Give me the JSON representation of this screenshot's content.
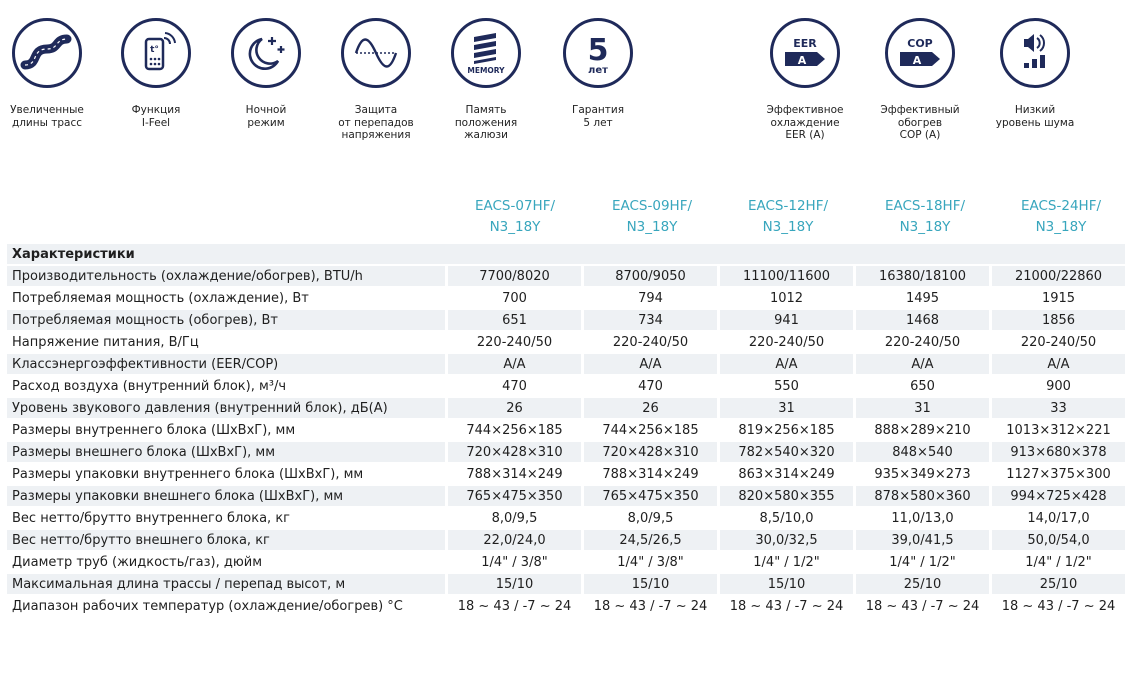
{
  "features": [
    {
      "icon": "road-icon",
      "caption": "Увеличенные\nдлины трасс"
    },
    {
      "icon": "remote-control-icon",
      "caption": "Функция\nI-Feel"
    },
    {
      "icon": "moon-icon",
      "caption": "Ночной\nрежим"
    },
    {
      "icon": "sine-wave-icon",
      "caption": "Защита\nот перепадов\nнапряжения"
    },
    {
      "icon": "memory-louver-icon",
      "caption": "Память\nположения\nжалюзи",
      "badge": "MEMORY"
    },
    {
      "icon": "warranty-icon",
      "caption": "Гарантия\n5 лет",
      "number": "5",
      "unit": "лет"
    },
    {
      "icon": "eer-badge-icon",
      "caption": "Эффективное\nохлаждение\nEER (A)",
      "label": "EER",
      "grade": "A"
    },
    {
      "icon": "cop-badge-icon",
      "caption": "Эффективный\nобогрев\nCOP (A)",
      "label": "COP",
      "grade": "A"
    },
    {
      "icon": "low-noise-icon",
      "caption": "Низкий\nуровень шума"
    }
  ],
  "models": [
    "EACS-07HF/\nN3_18Y",
    "EACS-09HF/\nN3_18Y",
    "EACS-12HF/\nN3_18Y",
    "EACS-18HF/\nN3_18Y",
    "EACS-24HF/\nN3_18Y"
  ],
  "section_title": "Характеристики",
  "rows": [
    {
      "param": "Производительность (охлаждение/обогрев), BTU/h",
      "values": [
        "7700/8020",
        "8700/9050",
        "11100/11600",
        "16380/18100",
        "21000/22860"
      ]
    },
    {
      "param": "Потребляемая мощность (охлаждение), Вт",
      "values": [
        "700",
        "794",
        "1012",
        "1495",
        "1915"
      ]
    },
    {
      "param": "Потребляемая мощность (обогрев), Вт",
      "values": [
        "651",
        "734",
        "941",
        "1468",
        "1856"
      ]
    },
    {
      "param": "Напряжение питания, В/Гц",
      "values": [
        "220-240/50",
        "220-240/50",
        "220-240/50",
        "220-240/50",
        "220-240/50"
      ]
    },
    {
      "param": "Классэнергоэффективности (EER/COP)",
      "values": [
        "A/A",
        "A/A",
        "A/A",
        "A/A",
        "A/A"
      ]
    },
    {
      "param": "Расход воздуха (внутренний блок), м³/ч",
      "values": [
        "470",
        "470",
        "550",
        "650",
        "900"
      ]
    },
    {
      "param": "Уровень звукового давления (внутренний блок), дБ(A)",
      "values": [
        "26",
        "26",
        "31",
        "31",
        "33"
      ]
    },
    {
      "param": "Размеры внутреннего блока (ШхВхГ), мм",
      "values": [
        "744×256×185",
        "744×256×185",
        "819×256×185",
        "888×289×210",
        "1013×312×221"
      ]
    },
    {
      "param": "Размеры внешнего блока (ШхВхГ), мм",
      "values": [
        "720×428×310",
        "720×428×310",
        "782×540×320",
        "848×540",
        "913×680×378"
      ]
    },
    {
      "param": "Размеры упаковки внутреннего блока (ШхВхГ), мм",
      "values": [
        "788×314×249",
        "788×314×249",
        "863×314×249",
        "935×349×273",
        "1127×375×300"
      ]
    },
    {
      "param": "Размеры упаковки внешнего блока (ШхВхГ), мм",
      "values": [
        "765×475×350",
        "765×475×350",
        "820×580×355",
        "878×580×360",
        "994×725×428"
      ]
    },
    {
      "param": "Вес нетто/брутто внутреннего блока, кг",
      "values": [
        "8,0/9,5",
        "8,0/9,5",
        "8,5/10,0",
        "11,0/13,0",
        "14,0/17,0"
      ]
    },
    {
      "param": "Вес нетто/брутто внешнего блока, кг",
      "values": [
        "22,0/24,0",
        "24,5/26,5",
        "30,0/32,5",
        "39,0/41,5",
        "50,0/54,0"
      ]
    },
    {
      "param": "Диаметр труб (жидкость/газ), дюйм",
      "values": [
        "1/4\" / 3/8\"",
        "1/4\" / 3/8\"",
        "1/4\" / 1/2\"",
        "1/4\" / 1/2\"",
        "1/4\" / 1/2\""
      ]
    },
    {
      "param": "Максимальная длина трассы / перепад высот, м",
      "values": [
        "15/10",
        "15/10",
        "15/10",
        "25/10",
        "25/10"
      ]
    },
    {
      "param": "Диапазон рабочих температур (охлаждение/обогрев) °C",
      "values": [
        "18 ~ 43 / -7 ~ 24",
        "18 ~ 43 / -7 ~ 24",
        "18 ~ 43 / -7 ~ 24",
        "18 ~ 43 / -7 ~ 24",
        "18 ~ 43 / -7 ~ 24"
      ]
    }
  ],
  "colors": {
    "navy": "#1f2a5a",
    "teal": "#38a6bd",
    "zebra": "#eef1f4"
  }
}
